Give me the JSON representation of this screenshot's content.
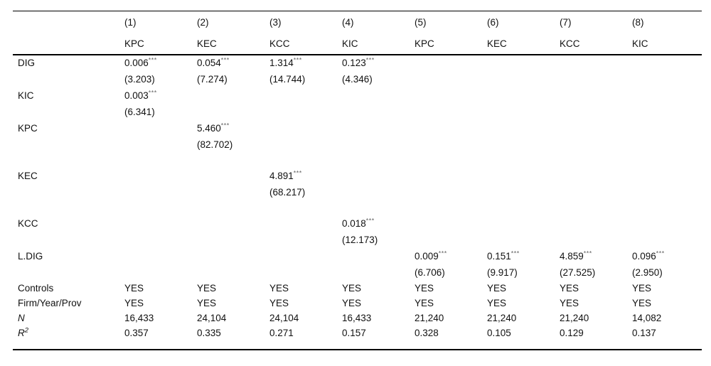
{
  "colors": {
    "background": "#ffffff",
    "text": "#111111",
    "stars": "#666666",
    "rule": "#000000"
  },
  "table": {
    "header": {
      "numbers": [
        "(1)",
        "(2)",
        "(3)",
        "(4)",
        "(5)",
        "(6)",
        "(7)",
        "(8)"
      ],
      "models": [
        "KPC",
        "KEC",
        "KCC",
        "KIC",
        "KPC",
        "KEC",
        "KCC",
        "KIC"
      ]
    },
    "coef_rows": [
      {
        "label": "DIG",
        "gap_after": false,
        "cells": [
          {
            "coef": "0.006",
            "stars": "***",
            "t": "(3.203)"
          },
          {
            "coef": "0.054",
            "stars": "***",
            "t": "(7.274)"
          },
          {
            "coef": "1.314",
            "stars": "***",
            "t": "(14.744)"
          },
          {
            "coef": "0.123",
            "stars": "***",
            "t": "(4.346)"
          },
          null,
          null,
          null,
          null
        ]
      },
      {
        "label": "KIC",
        "gap_after": false,
        "cells": [
          {
            "coef": "0.003",
            "stars": "***",
            "t": "(6.341)"
          },
          null,
          null,
          null,
          null,
          null,
          null,
          null
        ]
      },
      {
        "label": "KPC",
        "gap_after": true,
        "cells": [
          null,
          {
            "coef": "5.460",
            "stars": "***",
            "t": "(82.702)"
          },
          null,
          null,
          null,
          null,
          null,
          null
        ]
      },
      {
        "label": "KEC",
        "gap_after": true,
        "cells": [
          null,
          null,
          {
            "coef": "4.891",
            "stars": "***",
            "t": "(68.217)"
          },
          null,
          null,
          null,
          null,
          null
        ]
      },
      {
        "label": "KCC",
        "gap_after": false,
        "cells": [
          null,
          null,
          null,
          {
            "coef": "0.018",
            "stars": "***",
            "t": "(12.173)"
          },
          null,
          null,
          null,
          null
        ]
      },
      {
        "label": "L.DIG",
        "gap_after": false,
        "cells": [
          null,
          null,
          null,
          null,
          {
            "coef": "0.009",
            "stars": "***",
            "t": "(6.706)"
          },
          {
            "coef": "0.151",
            "stars": "***",
            "t": "(9.917)"
          },
          {
            "coef": "4.859",
            "stars": "***",
            "t": "(27.525)"
          },
          {
            "coef": "0.096",
            "stars": "***",
            "t": "(2.950)"
          }
        ]
      }
    ],
    "summary_rows": [
      {
        "label": "Controls",
        "italic": false,
        "label_sup": "",
        "values": [
          "YES",
          "YES",
          "YES",
          "YES",
          "YES",
          "YES",
          "YES",
          "YES"
        ]
      },
      {
        "label": "Firm/Year/Prov",
        "italic": false,
        "label_sup": "",
        "values": [
          "YES",
          "YES",
          "YES",
          "YES",
          "YES",
          "YES",
          "YES",
          "YES"
        ]
      },
      {
        "label": "N",
        "italic": true,
        "label_sup": "",
        "values": [
          "16,433",
          "24,104",
          "24,104",
          "16,433",
          "21,240",
          "21,240",
          "21,240",
          "14,082"
        ]
      },
      {
        "label": "R",
        "italic": true,
        "label_sup": "2",
        "values": [
          "0.357",
          "0.335",
          "0.271",
          "0.157",
          "0.328",
          "0.105",
          "0.129",
          "0.137"
        ]
      }
    ]
  }
}
